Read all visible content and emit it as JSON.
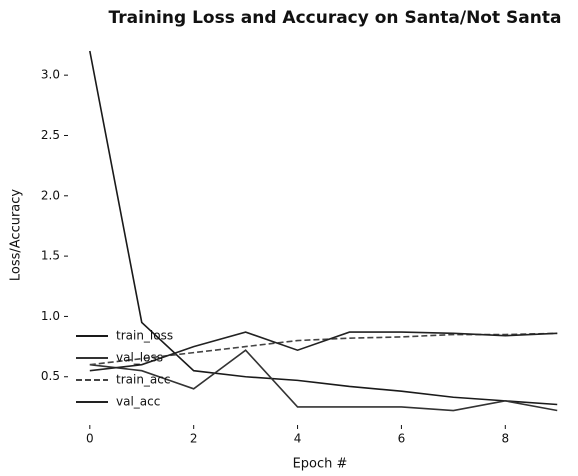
{
  "chart_data": {
    "type": "line",
    "title": "Training Loss and Accuracy on Santa/Not Santa",
    "x_label": "Epoch #",
    "y_label": "Loss/Accuracy",
    "x": [
      0,
      1,
      2,
      3,
      4,
      5,
      6,
      7,
      8,
      9
    ],
    "series": [
      {
        "name": "train_loss",
        "color": "#1a1a1a",
        "values": [
          3.2,
          0.95,
          0.55,
          0.5,
          0.47,
          0.42,
          0.38,
          0.33,
          0.3,
          0.27
        ]
      },
      {
        "name": "val_loss",
        "color": "#333333",
        "values": [
          0.6,
          0.55,
          0.4,
          0.72,
          0.25,
          0.25,
          0.25,
          0.22,
          0.3,
          0.22
        ]
      },
      {
        "name": "train_acc",
        "color": "#444444",
        "values": [
          0.6,
          0.65,
          0.7,
          0.75,
          0.8,
          0.82,
          0.83,
          0.85,
          0.85,
          0.86
        ]
      },
      {
        "name": "val_acc",
        "color": "#222222",
        "values": [
          0.55,
          0.6,
          0.75,
          0.87,
          0.72,
          0.87,
          0.87,
          0.86,
          0.84,
          0.86
        ]
      }
    ],
    "xlim": [
      -0.42,
      9.4
    ],
    "ylim": [
      0.1,
      3.25
    ],
    "xticks": [
      0,
      2,
      4,
      6,
      8
    ],
    "yticks": [
      0.5,
      {
        "value": 1,
        "label": "1.0"
      },
      1.5,
      {
        "value": 2,
        "label": "2.0"
      },
      2.5,
      {
        "value": 3,
        "label": "3.0"
      }
    ],
    "legend": "lower left"
  }
}
